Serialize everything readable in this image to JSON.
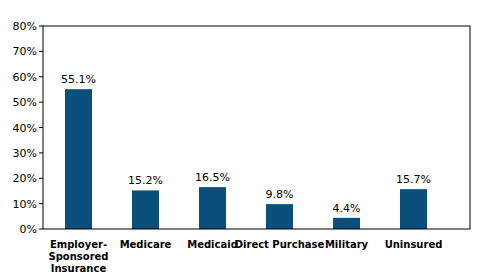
{
  "chart_data": {
    "type": "bar",
    "categories": [
      "Employer-Sponsored Insurance",
      "Medicare",
      "Medicaid",
      "Direct Purchase",
      "Military",
      "Uninsured"
    ],
    "values": [
      55.1,
      15.2,
      16.5,
      9.8,
      4.4,
      15.7
    ],
    "value_labels": [
      "55.1%",
      "15.2%",
      "16.5%",
      "9.8%",
      "4.4%",
      "15.7%"
    ],
    "color": "#0b4f7d",
    "ylim": [
      0,
      80
    ],
    "yticks": [
      {
        "value": 0,
        "label": "0%"
      },
      {
        "value": 10,
        "label": "10%"
      },
      {
        "value": 20,
        "label": "20%"
      },
      {
        "value": 30,
        "label": "30%"
      },
      {
        "value": 40,
        "label": "40%"
      },
      {
        "value": 50,
        "label": "50%"
      },
      {
        "value": 60,
        "label": "60%"
      },
      {
        "value": 70,
        "label": "70%"
      },
      {
        "value": 80,
        "label": "80%"
      }
    ],
    "grid": false,
    "data_labels": true
  }
}
